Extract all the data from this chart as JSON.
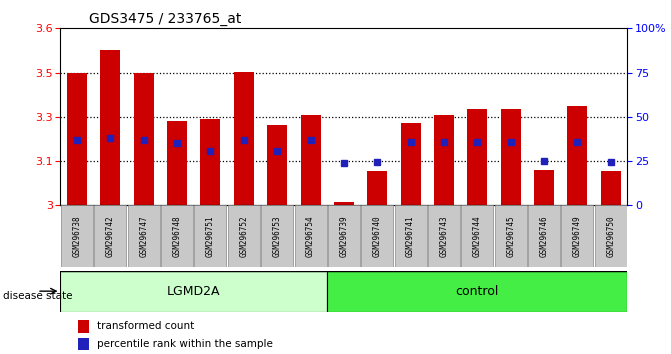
{
  "title": "GDS3475 / 233765_at",
  "samples": [
    "GSM296738",
    "GSM296742",
    "GSM296747",
    "GSM296748",
    "GSM296751",
    "GSM296752",
    "GSM296753",
    "GSM296754",
    "GSM296739",
    "GSM296740",
    "GSM296741",
    "GSM296743",
    "GSM296744",
    "GSM296745",
    "GSM296746",
    "GSM296749",
    "GSM296750"
  ],
  "groups": [
    "LGMD2A",
    "LGMD2A",
    "LGMD2A",
    "LGMD2A",
    "LGMD2A",
    "LGMD2A",
    "LGMD2A",
    "LGMD2A",
    "control",
    "control",
    "control",
    "control",
    "control",
    "control",
    "control",
    "control",
    "control"
  ],
  "bar_heights": [
    3.45,
    3.525,
    3.45,
    3.285,
    3.292,
    3.452,
    3.272,
    3.305,
    3.012,
    3.115,
    3.278,
    3.305,
    3.328,
    3.328,
    3.12,
    3.335,
    3.115
  ],
  "percentile_values": [
    3.222,
    3.228,
    3.222,
    3.212,
    3.183,
    3.222,
    3.185,
    3.222,
    3.145,
    3.148,
    3.215,
    3.215,
    3.215,
    3.215,
    3.15,
    3.215,
    3.148
  ],
  "y_min": 3.0,
  "y_max": 3.6,
  "y_ticks_left": [
    3.0,
    3.15,
    3.3,
    3.45,
    3.6
  ],
  "y_ticks_right": [
    0,
    25,
    50,
    75,
    100
  ],
  "bar_color": "#CC0000",
  "marker_color": "#2020BB",
  "lgmd2a_bg": "#CCFFCC",
  "control_bg": "#44EE44",
  "tick_bg": "#C8C8C8",
  "lgmd2a_label": "LGMD2A",
  "control_label": "control",
  "disease_state_label": "disease state",
  "legend_bar_label": "transformed count",
  "legend_marker_label": "percentile rank within the sample",
  "lgmd2a_count": 8,
  "ctrl_count": 9
}
